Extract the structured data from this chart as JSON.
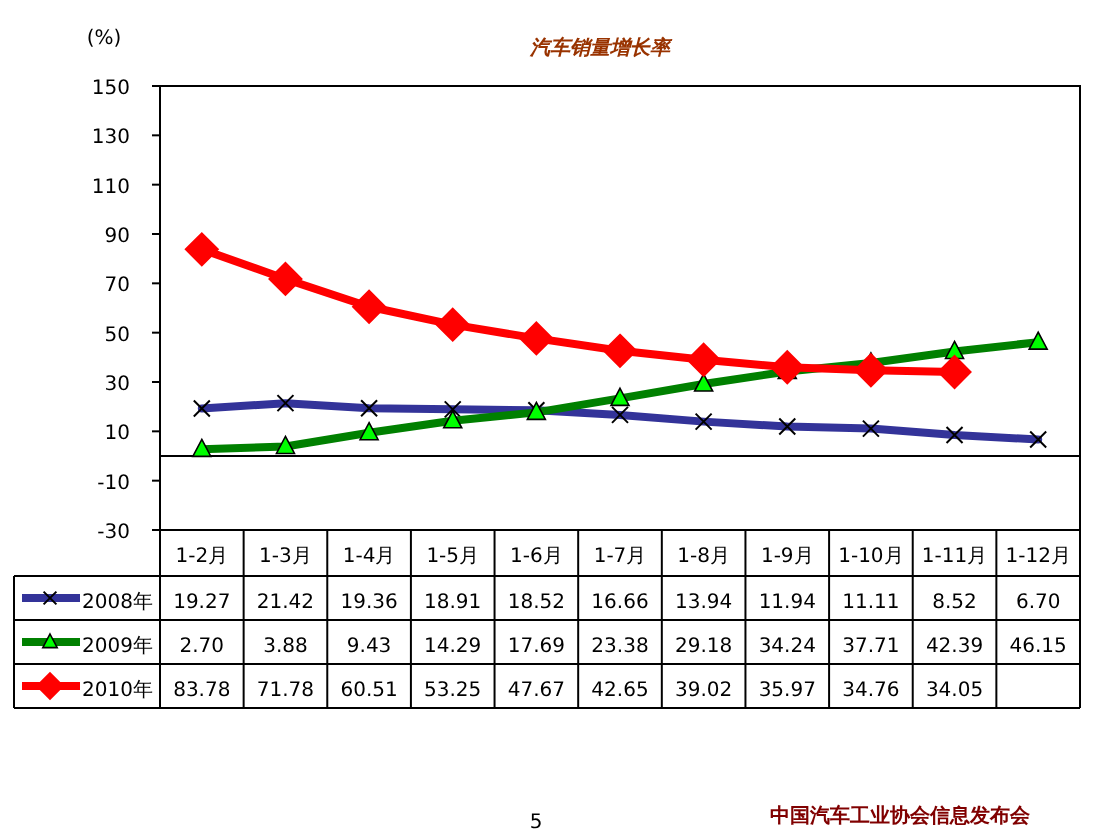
{
  "chart_data": {
    "type": "line",
    "title": "汽车销量增长率",
    "ylabel": "(%)",
    "categories": [
      "1-2月",
      "1-3月",
      "1-4月",
      "1-5月",
      "1-6月",
      "1-7月",
      "1-8月",
      "1-9月",
      "1-10月",
      "1-11月",
      "1-12月"
    ],
    "series": [
      {
        "name": "2008年",
        "color": "#333399",
        "marker": "cross",
        "values": [
          19.27,
          21.42,
          19.36,
          18.91,
          18.52,
          16.66,
          13.94,
          11.94,
          11.11,
          8.52,
          6.7
        ],
        "value_labels": [
          "19.27",
          "21.42",
          "19.36",
          "18.91",
          "18.52",
          "16.66",
          "13.94",
          "11.94",
          "11.11",
          "8.52",
          "6.70"
        ]
      },
      {
        "name": "2009年",
        "color": "#008000",
        "marker": "triangle",
        "values": [
          2.7,
          3.88,
          9.43,
          14.29,
          17.69,
          23.38,
          29.18,
          34.24,
          37.71,
          42.39,
          46.15
        ],
        "value_labels": [
          "2.70",
          "3.88",
          "9.43",
          "14.29",
          "17.69",
          "23.38",
          "29.18",
          "34.24",
          "37.71",
          "42.39",
          "46.15"
        ]
      },
      {
        "name": "2010年",
        "color": "#ff0000",
        "marker": "diamond",
        "values": [
          83.78,
          71.78,
          60.51,
          53.25,
          47.67,
          42.65,
          39.02,
          35.97,
          34.76,
          34.05,
          null
        ],
        "value_labels": [
          "83.78",
          "71.78",
          "60.51",
          "53.25",
          "47.67",
          "42.65",
          "39.02",
          "35.97",
          "34.76",
          "34.05",
          null
        ]
      }
    ],
    "ylim": [
      -30,
      150
    ],
    "yticks": [
      -30,
      -10,
      10,
      30,
      50,
      70,
      90,
      110,
      130,
      150
    ],
    "grid": false,
    "legend": "bottom left",
    "annotations": [
      "5",
      "中国汽车工业协会信息发布会"
    ]
  }
}
